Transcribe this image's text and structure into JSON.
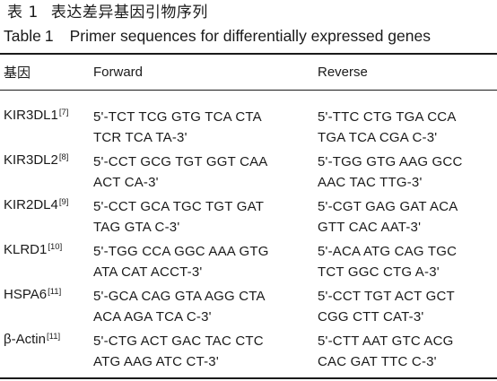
{
  "caption": {
    "cn_label": "表",
    "cn_number": "1",
    "cn_title": "表达差异基因引物序列",
    "en_label": "Table",
    "en_number": "1",
    "en_title": "Primer sequences for differentially expressed genes"
  },
  "header": {
    "gene": "基因",
    "forward": "Forward",
    "reverse": "Reverse"
  },
  "rows": [
    {
      "gene": "KIR3DL1",
      "ref": "[7]",
      "forward": [
        "5'-TCT TCG GTG TCA CTA",
        "TCR TCA TA-3'"
      ],
      "reverse": [
        "5'-TTC CTG TGA CCA",
        "TGA TCA CGA C-3'"
      ]
    },
    {
      "gene": "KIR3DL2",
      "ref": "[8]",
      "forward": [
        "5'-CCT GCG TGT GGT CAA",
        "ACT CA-3'"
      ],
      "reverse": [
        "5'-TGG GTG AAG GCC",
        "AAC TAC TTG-3'"
      ]
    },
    {
      "gene": "KIR2DL4",
      "ref": "[9]",
      "forward": [
        "5'-CCT GCA TGC TGT GAT",
        "TAG GTA C-3'"
      ],
      "reverse": [
        "5'-CGT GAG GAT ACA",
        "GTT CAC AAT-3'"
      ]
    },
    {
      "gene": "KLRD1",
      "ref": "[10]",
      "forward": [
        "5'-TGG CCA GGC AAA GTG",
        "ATA CAT ACCT-3'"
      ],
      "reverse": [
        "5'-ACA ATG CAG TGC",
        "TCT GGC CTG A-3'"
      ]
    },
    {
      "gene": "HSPA6",
      "ref": "[11]",
      "forward": [
        "5'-GCA CAG GTA AGG CTA",
        "ACA AGA TCA C-3'"
      ],
      "reverse": [
        "5'-CCT TGT ACT GCT",
        "CGG CTT CAT-3'"
      ]
    },
    {
      "gene": "β-Actin",
      "ref": "[11]",
      "forward": [
        "5'-CTG ACT GAC TAC CTC",
        "ATG AAG ATC CT-3'"
      ],
      "reverse": [
        "5'-CTT AAT GTC ACG",
        "CAC GAT TTC C-3'"
      ]
    }
  ]
}
